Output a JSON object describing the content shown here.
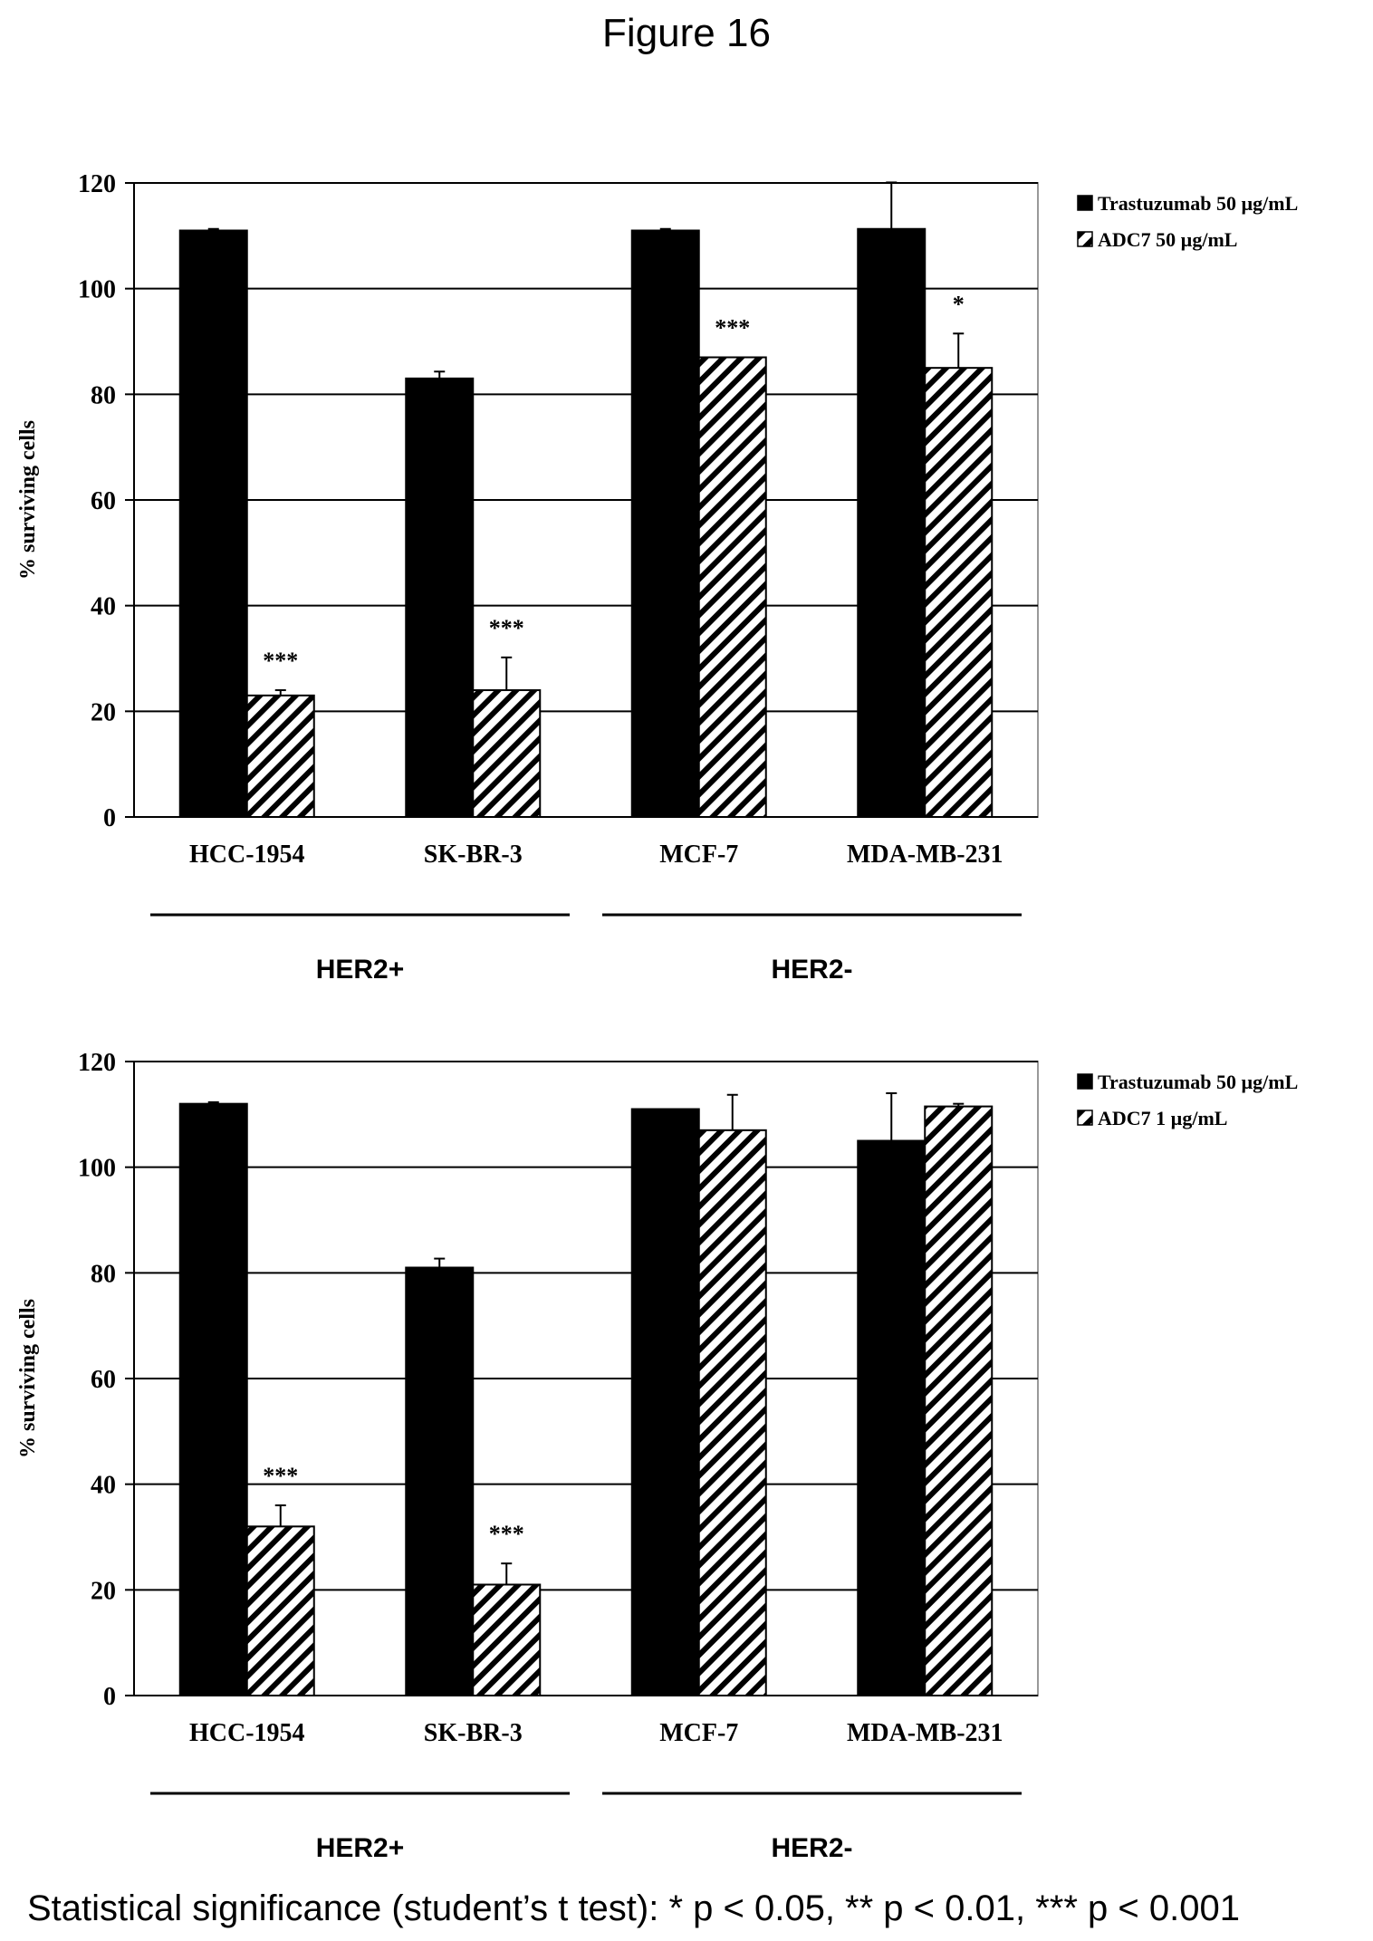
{
  "figure_title": "Figure 16",
  "footer": "Statistical significance (student’s t test): * p < 0.05, ** p < 0.01, *** p < 0.001",
  "colors": {
    "trastuzumab": "#000000",
    "adc7": "#ffffff",
    "grid": "#000000",
    "plot_border": "#999999"
  },
  "chart_data": [
    {
      "type": "bar",
      "ylabel": "% surviving cells",
      "ylim": [
        0,
        120
      ],
      "yticks": [
        0,
        20,
        40,
        60,
        80,
        100,
        120
      ],
      "categories": [
        "HCC-1954",
        "SK-BR-3",
        "MCF-7",
        "MDA-MB-231"
      ],
      "groups": [
        {
          "label": "HER2+",
          "categories": [
            "HCC-1954",
            "SK-BR-3"
          ]
        },
        {
          "label": "HER2-",
          "categories": [
            "MCF-7",
            "MDA-MB-231"
          ]
        }
      ],
      "legend_position": "right",
      "series": [
        {
          "name": "Trastuzumab  50 µg/mL",
          "fill": "solid",
          "values": [
            111,
            83,
            111,
            111.3
          ],
          "errors": [
            0.3,
            1.3,
            0.3,
            8.8
          ]
        },
        {
          "name": "ADC7 50 µg/mL",
          "fill": "hatched",
          "values": [
            23,
            24,
            87,
            85
          ],
          "errors": [
            1,
            6.2,
            0,
            6.5
          ]
        }
      ],
      "annotations": [
        {
          "category": "HCC-1954",
          "series": 1,
          "text": "***"
        },
        {
          "category": "SK-BR-3",
          "series": 1,
          "text": "***"
        },
        {
          "category": "MCF-7",
          "series": 1,
          "text": "***"
        },
        {
          "category": "MDA-MB-231",
          "series": 1,
          "text": "*"
        }
      ]
    },
    {
      "type": "bar",
      "ylabel": "% surviving cells",
      "ylim": [
        0,
        120
      ],
      "yticks": [
        0,
        20,
        40,
        60,
        80,
        100,
        120
      ],
      "categories": [
        "HCC-1954",
        "SK-BR-3",
        "MCF-7",
        "MDA-MB-231"
      ],
      "groups": [
        {
          "label": "HER2+",
          "categories": [
            "HCC-1954",
            "SK-BR-3"
          ]
        },
        {
          "label": "HER2-",
          "categories": [
            "MCF-7",
            "MDA-MB-231"
          ]
        }
      ],
      "legend_position": "right",
      "series": [
        {
          "name": "Trastuzumab  50 µg/mL",
          "fill": "solid",
          "values": [
            112,
            81,
            111,
            105
          ],
          "errors": [
            0.3,
            1.7,
            0,
            9
          ]
        },
        {
          "name": "ADC7  1 µg/mL",
          "fill": "hatched",
          "values": [
            32,
            21,
            107,
            111.5
          ],
          "errors": [
            4,
            4,
            6.7,
            0.5
          ]
        }
      ],
      "annotations": [
        {
          "category": "HCC-1954",
          "series": 1,
          "text": "***"
        },
        {
          "category": "SK-BR-3",
          "series": 1,
          "text": "***"
        }
      ]
    }
  ]
}
